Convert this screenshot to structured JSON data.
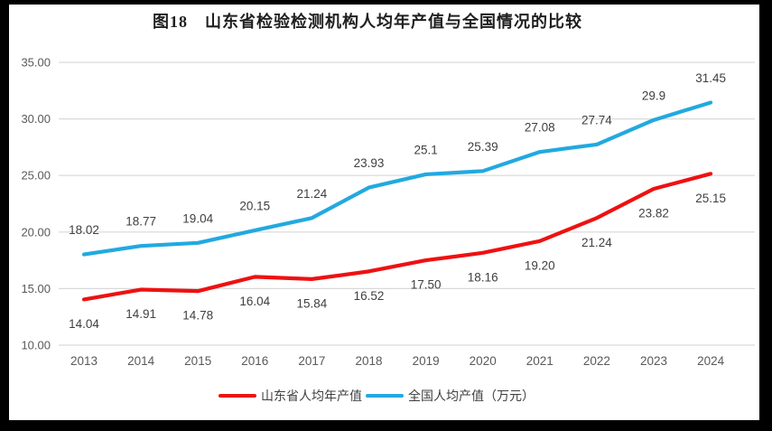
{
  "colors": {
    "frame": "#000000",
    "background": "#ffffff",
    "gridline": "#d9d9d9",
    "axis_label": "#595959",
    "data_label": "#3f3f3f",
    "title_text": "#1f1f1f"
  },
  "chart_data": {
    "type": "line",
    "title": "图18　山东省检验检测机构人均年产值与全国情况的比较",
    "xlabel": "",
    "ylabel": "",
    "categories": [
      "2013",
      "2014",
      "2015",
      "2016",
      "2017",
      "2018",
      "2019",
      "2020",
      "2021",
      "2022",
      "2023",
      "2024"
    ],
    "series": [
      {
        "id": "shandong",
        "name": "山东省人均年产值",
        "color": "#ee1111",
        "values": [
          14.04,
          14.91,
          14.78,
          16.04,
          15.84,
          16.52,
          17.5,
          18.16,
          19.2,
          21.24,
          23.82,
          25.15
        ],
        "labels": [
          "14.04",
          "14.91",
          "14.78",
          "16.04",
          "15.84",
          "16.52",
          "17.50",
          "18.16",
          "19.20",
          "21.24",
          "23.82",
          "25.15"
        ],
        "label_position": "below"
      },
      {
        "id": "national",
        "name": "全国人均产值（万元）",
        "color": "#22a9e0",
        "values": [
          18.02,
          18.77,
          19.04,
          20.15,
          21.24,
          23.93,
          25.1,
          25.39,
          27.08,
          27.74,
          29.9,
          31.45
        ],
        "labels": [
          "18.02",
          "18.77",
          "19.04",
          "20.15",
          "21.24",
          "23.93",
          "25.1",
          "25.39",
          "27.08",
          "27.74",
          "29.9",
          "31.45"
        ],
        "label_position": "above"
      }
    ],
    "ylim": [
      10,
      35
    ],
    "yticks": [
      35,
      30,
      25,
      20,
      15,
      10
    ],
    "ytick_labels": [
      "35.00",
      "30.00",
      "25.00",
      "20.00",
      "15.00",
      "10.00"
    ],
    "grid": true,
    "legend_position": "bottom"
  }
}
